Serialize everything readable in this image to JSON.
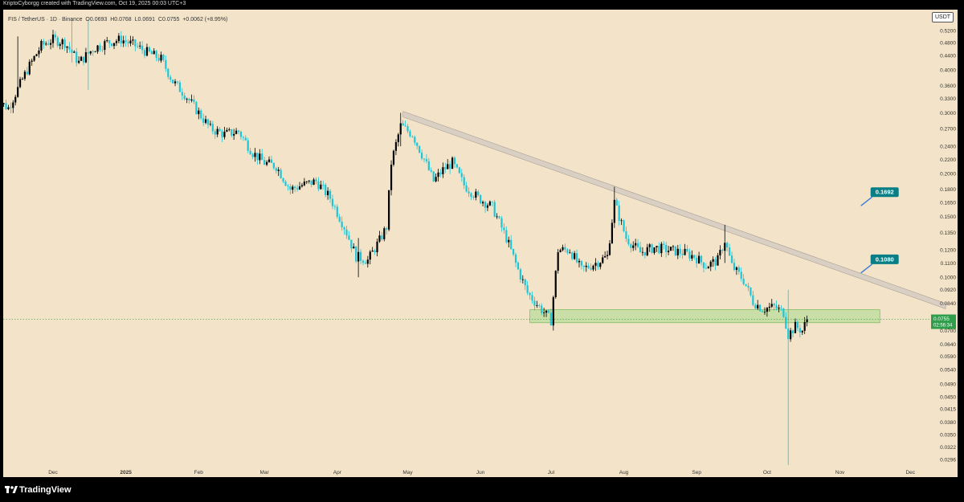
{
  "header": {
    "attribution": "KriptoCyborgg created with TradingView.com, Oct 19, 2025 00:03 UTC+3"
  },
  "legend": {
    "symbol": "FIS / TetherUS · 1D · Binance",
    "open": "O0.0693",
    "high": "H0.0768",
    "low": "L0.0691",
    "close": "C0.0755",
    "change": "+0.0062 (+8.95%)"
  },
  "currency_badge": "USDT",
  "footer": {
    "brand": "TradingView"
  },
  "colors": {
    "background": "#f3e4c9",
    "candle_up": "#000000",
    "candle_down": "#1ec5d8",
    "zone_fill": "#a8d98a",
    "channel_fill": "#d4ccc2",
    "label_teal": "#087f86",
    "price_badge": "#2e9e4a",
    "annotation_arrow": "#3a7bd5"
  },
  "chart_data": {
    "type": "candlestick",
    "scale": "log",
    "y_ticks": [
      0.52,
      0.48,
      0.44,
      0.4,
      0.36,
      0.33,
      0.3,
      0.27,
      0.24,
      0.22,
      0.2,
      0.18,
      0.165,
      0.15,
      0.135,
      0.12,
      0.11,
      0.1,
      0.092,
      0.084,
      0.07,
      0.064,
      0.059,
      0.054,
      0.049,
      0.045,
      0.0415,
      0.038,
      0.035,
      0.0322,
      0.0296
    ],
    "y_tick_labels": [
      "0.5200",
      "0.4800",
      "0.4400",
      "0.4000",
      "0.3600",
      "0.3300",
      "0.3000",
      "0.2700",
      "0.2400",
      "0.2200",
      "0.2000",
      "0.1800",
      "0.1650",
      "0.1500",
      "0.1350",
      "0.1200",
      "0.1100",
      "0.1000",
      "0.0920",
      "0.0840",
      "0.0700",
      "0.0640",
      "0.0590",
      "0.0540",
      "0.0490",
      "0.0450",
      "0.0415",
      "0.0380",
      "0.0350",
      "0.0322",
      "0.0296"
    ],
    "x_ticks": [
      {
        "label": "Dec",
        "date": "2024-12-01"
      },
      {
        "label": "2025",
        "date": "2025-01-01"
      },
      {
        "label": "Feb",
        "date": "2025-02-01"
      },
      {
        "label": "Mar",
        "date": "2025-03-01"
      },
      {
        "label": "Apr",
        "date": "2025-04-01"
      },
      {
        "label": "May",
        "date": "2025-05-01"
      },
      {
        "label": "Jun",
        "date": "2025-06-01"
      },
      {
        "label": "Jul",
        "date": "2025-07-01"
      },
      {
        "label": "Aug",
        "date": "2025-08-01"
      },
      {
        "label": "Sep",
        "date": "2025-09-01"
      },
      {
        "label": "Oct",
        "date": "2025-10-01"
      },
      {
        "label": "Nov",
        "date": "2025-11-01"
      },
      {
        "label": "Dec",
        "date": "2025-12-01"
      }
    ],
    "price_path": [
      [
        "2024-11-06",
        0.33
      ],
      [
        "2024-11-12",
        0.31
      ],
      [
        "2024-11-20",
        0.4
      ],
      [
        "2024-11-26",
        0.47
      ],
      [
        "2024-12-01",
        0.49
      ],
      [
        "2024-12-06",
        0.48
      ],
      [
        "2024-12-12",
        0.42
      ],
      [
        "2024-12-18",
        0.46
      ],
      [
        "2024-12-24",
        0.48
      ],
      [
        "2024-12-30",
        0.49
      ],
      [
        "2025-01-05",
        0.47
      ],
      [
        "2025-01-10",
        0.45
      ],
      [
        "2025-01-16",
        0.43
      ],
      [
        "2025-01-21",
        0.37
      ],
      [
        "2025-01-26",
        0.34
      ],
      [
        "2025-02-01",
        0.3
      ],
      [
        "2025-02-06",
        0.27
      ],
      [
        "2025-02-12",
        0.26
      ],
      [
        "2025-02-18",
        0.265
      ],
      [
        "2025-02-24",
        0.23
      ],
      [
        "2025-03-01",
        0.215
      ],
      [
        "2025-03-06",
        0.21
      ],
      [
        "2025-03-12",
        0.18
      ],
      [
        "2025-03-17",
        0.185
      ],
      [
        "2025-03-23",
        0.19
      ],
      [
        "2025-03-29",
        0.17
      ],
      [
        "2025-04-04",
        0.14
      ],
      [
        "2025-04-09",
        0.115
      ],
      [
        "2025-04-14",
        0.112
      ],
      [
        "2025-04-19",
        0.128
      ],
      [
        "2025-04-22",
        0.14
      ],
      [
        "2025-04-24",
        0.215
      ],
      [
        "2025-04-28",
        0.275
      ],
      [
        "2025-05-03",
        0.26
      ],
      [
        "2025-05-08",
        0.22
      ],
      [
        "2025-05-12",
        0.19
      ],
      [
        "2025-05-16",
        0.205
      ],
      [
        "2025-05-20",
        0.215
      ],
      [
        "2025-05-25",
        0.185
      ],
      [
        "2025-05-31",
        0.17
      ],
      [
        "2025-06-06",
        0.16
      ],
      [
        "2025-06-12",
        0.13
      ],
      [
        "2025-06-17",
        0.105
      ],
      [
        "2025-06-21",
        0.09
      ],
      [
        "2025-06-26",
        0.082
      ],
      [
        "2025-07-01",
        0.075
      ],
      [
        "2025-07-04",
        0.12
      ],
      [
        "2025-07-09",
        0.12
      ],
      [
        "2025-07-14",
        0.105
      ],
      [
        "2025-07-20",
        0.11
      ],
      [
        "2025-07-25",
        0.115
      ],
      [
        "2025-07-28",
        0.165
      ],
      [
        "2025-08-02",
        0.13
      ],
      [
        "2025-08-08",
        0.118
      ],
      [
        "2025-08-14",
        0.122
      ],
      [
        "2025-08-20",
        0.12
      ],
      [
        "2025-08-26",
        0.118
      ],
      [
        "2025-08-31",
        0.115
      ],
      [
        "2025-09-05",
        0.108
      ],
      [
        "2025-09-10",
        0.112
      ],
      [
        "2025-09-13",
        0.128
      ],
      [
        "2025-09-16",
        0.108
      ],
      [
        "2025-09-21",
        0.098
      ],
      [
        "2025-09-25",
        0.085
      ],
      [
        "2025-09-29",
        0.081
      ],
      [
        "2025-10-04",
        0.082
      ],
      [
        "2025-10-08",
        0.079
      ],
      [
        "2025-10-10",
        0.068
      ],
      [
        "2025-10-13",
        0.072
      ],
      [
        "2025-10-16",
        0.07
      ],
      [
        "2025-10-18",
        0.0755
      ]
    ],
    "notable_wicks": [
      {
        "date": "2024-11-16",
        "high": 0.5,
        "low": 0.38
      },
      {
        "date": "2024-12-09",
        "high": 0.56,
        "low": 0.42
      },
      {
        "date": "2024-12-16",
        "high": 0.56,
        "low": 0.35
      },
      {
        "date": "2025-04-10",
        "high": 0.13,
        "low": 0.1
      },
      {
        "date": "2025-04-28",
        "high": 0.3,
        "low": 0.24
      },
      {
        "date": "2025-07-28",
        "high": 0.183,
        "low": 0.14
      },
      {
        "date": "2025-09-13",
        "high": 0.142,
        "low": 0.11
      },
      {
        "date": "2025-10-10",
        "high": 0.092,
        "low": 0.0285
      }
    ],
    "last_price": 0.0755,
    "last_price_label": "0.0755",
    "countdown_label": "02:56:34",
    "support_zone": {
      "start": "2025-06-22",
      "end": "2025-11-18",
      "top": 0.0805,
      "bottom": 0.0738
    },
    "resistance_channel": {
      "start": {
        "date": "2025-04-29",
        "upper": 0.303,
        "lower": 0.292
      },
      "end": {
        "date": "2025-12-16",
        "upper": 0.084,
        "lower": 0.081
      }
    },
    "annotations": [
      {
        "label": "0.1692",
        "date": "2025-11-12",
        "value": 0.1692
      },
      {
        "label": "0.1080",
        "date": "2025-11-12",
        "value": 0.108
      }
    ]
  }
}
